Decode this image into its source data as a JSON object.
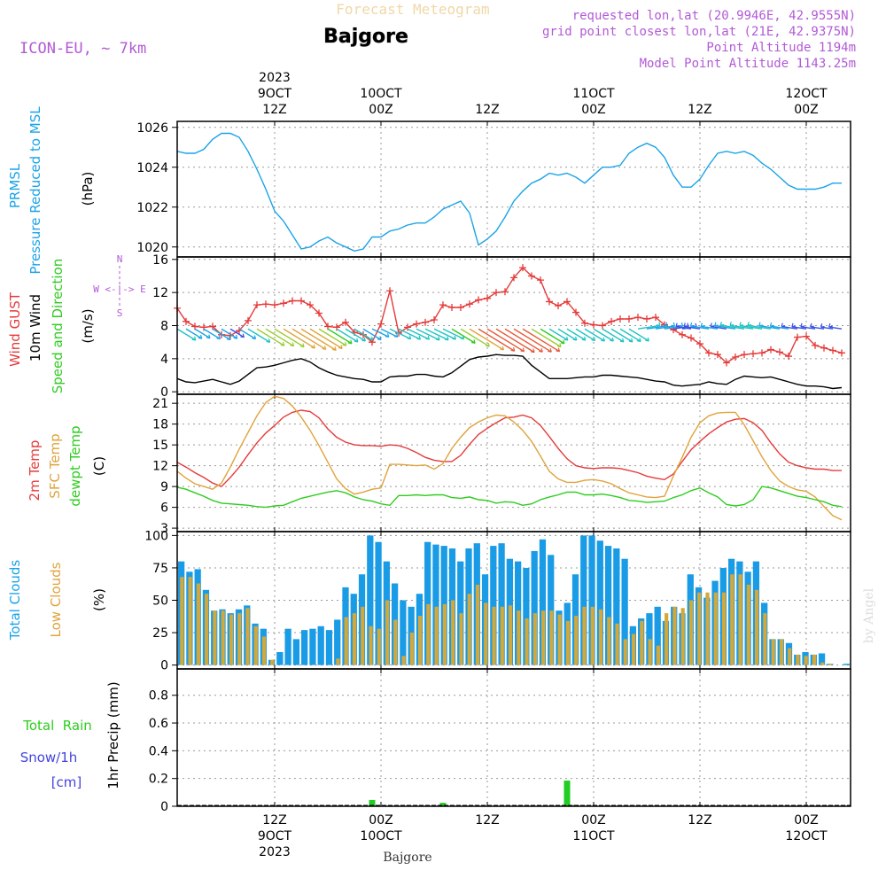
{
  "header": {
    "product": "Forecast Meteogram",
    "location": "Bajgore",
    "model": "ICON-EU, ~ 7km",
    "requested": "requested lon,lat (20.9946E, 42.9555N)",
    "gridpoint": "grid point closest lon,lat (21E, 42.9375N)",
    "point_altitude": "Point Altitude 1194m",
    "model_altitude": "Model Point Altitude 1143.25m",
    "watermark": "by Angel",
    "footer": "Bajgore"
  },
  "time_axis": {
    "top_labels": [
      {
        "lines": [
          "2023",
          "9OCT",
          "12Z"
        ],
        "t": 12
      },
      {
        "lines": [
          "10OCT",
          "00Z"
        ],
        "t": 24
      },
      {
        "lines": [
          "12Z"
        ],
        "t": 36
      },
      {
        "lines": [
          "11OCT",
          "00Z"
        ],
        "t": 48
      },
      {
        "lines": [
          "12Z"
        ],
        "t": 60
      },
      {
        "lines": [
          "12OCT",
          "00Z"
        ],
        "t": 72
      }
    ],
    "bottom_labels": [
      {
        "lines": [
          "12Z",
          "9OCT",
          "2023"
        ],
        "t": 12
      },
      {
        "lines": [
          "00Z",
          "10OCT"
        ],
        "t": 24
      },
      {
        "lines": [
          "12Z"
        ],
        "t": 36
      },
      {
        "lines": [
          "00Z",
          "11OCT"
        ],
        "t": 48
      },
      {
        "lines": [
          "12Z"
        ],
        "t": 60
      },
      {
        "lines": [
          "00Z",
          "12OCT"
        ],
        "t": 72
      }
    ]
  },
  "panels": {
    "pressure": {
      "label1": "PRMSL",
      "label2": "Pressure Reduced to MSL",
      "unit": "(hPa)"
    },
    "wind": {
      "gust": "Wind GUST",
      "wind10": "10m Wind",
      "speeddir": "Speed and Direction",
      "unit": "(m/s)",
      "compass_n": "N",
      "compass_s": "S",
      "compass_w": "W",
      "compass_e": "E",
      "compass_ws": "W <-|-> E"
    },
    "temp": {
      "t2m": "2m Temp",
      "sfc": "SFC Temp",
      "dewpt": "dewpt Temp",
      "unit": "(C)"
    },
    "clouds": {
      "total": "Total Clouds",
      "low": "Low Clouds",
      "unit": "(%)"
    },
    "precip": {
      "rain": "Total  Rain",
      "snow": "Snow/1h",
      "snow_unit": "[cm]",
      "ylabel": "1hr Precip (mm)"
    }
  },
  "chart_data": [
    {
      "type": "line",
      "title": "Pressure Reduced to MSL",
      "ylabel": "(hPa)",
      "x_range": [
        1,
        77
      ],
      "ylim": [
        1019.5,
        1026.3
      ],
      "yticks": [
        1020,
        1022,
        1024,
        1026
      ],
      "series": [
        {
          "name": "PRMSL",
          "color": "#1aa3e8",
          "x": [
            1,
            2,
            3,
            4,
            5,
            6,
            7,
            8,
            9,
            10,
            11,
            12,
            13,
            14,
            15,
            16,
            17,
            18,
            19,
            20,
            21,
            22,
            23,
            24,
            25,
            26,
            27,
            28,
            29,
            30,
            31,
            32,
            33,
            34,
            35,
            36,
            37,
            38,
            39,
            40,
            41,
            42,
            43,
            44,
            45,
            46,
            47,
            48,
            49,
            50,
            51,
            52,
            53,
            54,
            55,
            56,
            57,
            58,
            59,
            60,
            61,
            62,
            63,
            64,
            65,
            66,
            67,
            68,
            69,
            70,
            71,
            72,
            73,
            74,
            75,
            76
          ],
          "values": [
            1024.8,
            1024.7,
            1024.7,
            1024.9,
            1025.4,
            1025.7,
            1025.7,
            1025.5,
            1024.8,
            1023.9,
            1022.9,
            1021.8,
            1021.3,
            1020.6,
            1019.9,
            1020.0,
            1020.3,
            1020.5,
            1020.2,
            1020.0,
            1019.8,
            1019.9,
            1020.5,
            1020.5,
            1020.8,
            1020.9,
            1021.1,
            1021.2,
            1021.2,
            1021.5,
            1021.9,
            1022.1,
            1022.3,
            1021.7,
            1020.1,
            1020.4,
            1020.8,
            1021.5,
            1022.3,
            1022.8,
            1023.2,
            1023.4,
            1023.7,
            1023.6,
            1023.7,
            1023.5,
            1023.2,
            1023.6,
            1024.0,
            1024.0,
            1024.1,
            1024.7,
            1025.0,
            1025.2,
            1025.0,
            1024.5,
            1023.6,
            1023.0,
            1023.0,
            1023.4,
            1024.1,
            1024.7,
            1024.8,
            1024.7,
            1024.8,
            1024.6,
            1024.2,
            1023.9,
            1023.5,
            1023.1,
            1022.9,
            1022.9,
            1022.9,
            1023.0,
            1023.2,
            1023.2
          ]
        }
      ]
    },
    {
      "type": "line",
      "title": "Wind GUST / 10m Wind Speed and Direction",
      "ylabel": "(m/s)",
      "x_range": [
        1,
        77
      ],
      "ylim": [
        -0.3,
        16.3
      ],
      "yticks": [
        0,
        4,
        8,
        12,
        16
      ],
      "series": [
        {
          "name": "Wind GUST",
          "color": "#e53a3a",
          "values": [
            10.1,
            8.5,
            7.9,
            7.8,
            7.9,
            6.9,
            6.8,
            7.4,
            8.6,
            10.5,
            10.6,
            10.5,
            10.7,
            11.0,
            11.0,
            10.5,
            9.5,
            7.9,
            7.8,
            8.4,
            7.2,
            6.9,
            6.0,
            8.2,
            12.2,
            7.1,
            7.8,
            8.2,
            8.4,
            8.7,
            10.5,
            10.2,
            10.2,
            10.6,
            11.1,
            11.3,
            12.0,
            12.1,
            13.8,
            15.0,
            14.0,
            13.5,
            10.9,
            10.4,
            10.9,
            9.6,
            8.3,
            8.1,
            8.0,
            8.5,
            8.8,
            8.8,
            9.0,
            8.8,
            9.0,
            8.1,
            7.5,
            6.9,
            6.5,
            5.8,
            4.7,
            4.5,
            3.5,
            4.2,
            4.5,
            4.6,
            4.7,
            5.1,
            4.8,
            4.3,
            6.6,
            6.7,
            5.6,
            5.3,
            5.0,
            4.7
          ]
        },
        {
          "name": "10m Wind",
          "color": "#000000",
          "values": [
            1.6,
            1.2,
            1.1,
            1.3,
            1.5,
            1.2,
            0.9,
            1.3,
            2.1,
            2.9,
            3.0,
            3.2,
            3.5,
            3.8,
            4.0,
            3.6,
            2.9,
            2.4,
            2.0,
            1.8,
            1.6,
            1.5,
            1.2,
            1.2,
            1.8,
            1.9,
            1.9,
            2.1,
            2.1,
            1.9,
            1.8,
            2.3,
            3.1,
            3.9,
            4.2,
            4.3,
            4.5,
            4.4,
            4.4,
            4.3,
            3.2,
            2.4,
            1.6,
            1.6,
            1.6,
            1.7,
            1.8,
            1.8,
            2.0,
            2.0,
            1.9,
            1.8,
            1.7,
            1.5,
            1.3,
            1.2,
            0.8,
            0.7,
            0.8,
            0.9,
            1.2,
            1.0,
            0.9,
            1.5,
            1.9,
            1.8,
            1.7,
            1.8,
            1.5,
            1.2,
            0.9,
            0.7,
            0.7,
            0.6,
            0.4,
            0.5
          ]
        }
      ],
      "wind_barb_speeds": [
        1.6,
        1.2,
        1.1,
        1.3,
        1.5,
        1.2,
        0.9,
        1.3,
        2.1,
        2.9,
        3.0,
        3.2,
        3.5,
        3.8,
        4.0,
        3.6,
        2.9,
        2.4,
        2.0,
        1.8,
        1.6,
        1.5,
        1.2,
        1.2,
        1.8,
        1.9,
        1.9,
        2.1,
        2.1,
        1.9,
        1.8,
        2.3,
        3.1,
        3.9,
        4.2,
        4.3,
        4.5,
        4.4,
        4.4,
        4.3,
        3.2,
        2.4,
        1.6,
        1.6,
        1.6,
        1.7,
        1.8,
        1.8,
        2.0,
        2.0,
        1.9,
        1.8,
        1.7,
        1.5,
        1.3,
        1.2,
        0.8,
        0.7,
        0.8,
        0.9,
        1.2,
        1.0,
        0.9,
        1.5,
        1.9,
        1.8,
        1.7,
        1.8,
        1.5,
        1.2,
        0.9,
        0.7,
        0.7,
        0.6,
        0.4,
        0.5
      ]
    },
    {
      "type": "line",
      "title": "2m Temp / SFC Temp / dewpt Temp",
      "ylabel": "(C)",
      "x_range": [
        1,
        77
      ],
      "ylim": [
        2.5,
        22.3
      ],
      "yticks": [
        3,
        6,
        9,
        12,
        15,
        18,
        21
      ],
      "series": [
        {
          "name": "2m Temp",
          "color": "#e53a3a",
          "values": [
            12.5,
            11.8,
            11.0,
            10.3,
            9.5,
            9.0,
            10.3,
            11.8,
            13.6,
            15.3,
            16.7,
            17.8,
            19.0,
            19.7,
            20.0,
            19.8,
            18.9,
            17.3,
            16.1,
            15.4,
            15.0,
            14.9,
            14.9,
            14.8,
            15.0,
            14.9,
            14.5,
            13.9,
            13.2,
            12.8,
            12.6,
            12.6,
            13.5,
            15.1,
            16.5,
            17.4,
            18.2,
            18.9,
            19.0,
            19.3,
            18.9,
            17.8,
            16.2,
            14.5,
            13.0,
            12.0,
            11.7,
            11.6,
            11.7,
            11.7,
            11.6,
            11.3,
            11.0,
            10.5,
            10.2,
            10.0,
            10.8,
            12.6,
            14.3,
            15.5,
            16.6,
            17.5,
            18.3,
            18.7,
            18.8,
            18.2,
            17.1,
            15.3,
            13.7,
            12.5,
            12.0,
            11.7,
            11.5,
            11.5,
            11.3,
            11.3
          ]
        },
        {
          "name": "SFC Temp",
          "color": "#e0a33c",
          "values": [
            11.2,
            10.2,
            9.4,
            9.0,
            8.6,
            9.5,
            11.8,
            14.4,
            16.8,
            19.2,
            21.1,
            22.0,
            21.7,
            20.6,
            19.0,
            17.1,
            14.9,
            12.5,
            10.1,
            8.7,
            7.9,
            8.2,
            8.6,
            8.8,
            12.2,
            12.2,
            12.1,
            12.0,
            12.1,
            11.5,
            12.3,
            14.5,
            16.1,
            17.5,
            18.3,
            18.9,
            19.3,
            19.2,
            18.3,
            17.1,
            15.5,
            13.4,
            11.2,
            10.1,
            9.6,
            9.6,
            9.9,
            10.0,
            9.8,
            9.4,
            8.7,
            8.1,
            7.8,
            7.5,
            7.4,
            7.6,
            10.5,
            13.2,
            16.1,
            18.2,
            19.2,
            19.6,
            19.7,
            19.7,
            17.9,
            15.6,
            13.3,
            11.3,
            9.8,
            9.0,
            8.5,
            8.3,
            7.5,
            6.1,
            4.8,
            4.2
          ]
        },
        {
          "name": "dewpt Temp",
          "color": "#2ecc1f",
          "values": [
            8.9,
            8.6,
            8.1,
            7.6,
            7.0,
            6.6,
            6.5,
            6.4,
            6.3,
            6.1,
            6.0,
            6.2,
            6.3,
            6.8,
            7.3,
            7.6,
            7.9,
            8.2,
            8.4,
            8.1,
            7.5,
            7.1,
            6.9,
            6.5,
            6.3,
            7.7,
            7.7,
            7.8,
            7.7,
            7.8,
            7.8,
            7.4,
            7.3,
            7.5,
            7.1,
            7.0,
            6.6,
            6.8,
            6.7,
            6.3,
            6.5,
            7.1,
            7.5,
            7.8,
            8.2,
            8.2,
            7.8,
            7.8,
            7.9,
            7.7,
            7.4,
            7.0,
            6.9,
            6.7,
            6.8,
            6.9,
            7.4,
            7.8,
            8.4,
            8.8,
            8.1,
            7.5,
            6.4,
            6.2,
            6.4,
            7.1,
            9.0,
            8.8,
            8.4,
            8.0,
            7.6,
            7.4,
            7.1,
            6.8,
            6.3,
            6.1
          ]
        }
      ]
    },
    {
      "type": "bar",
      "title": "Total Clouds / Low Clouds",
      "ylabel": "(%)",
      "x_range": [
        1,
        77
      ],
      "ylim": [
        -3,
        103
      ],
      "yticks": [
        0,
        25,
        50,
        75,
        100
      ],
      "series": [
        {
          "name": "Total Clouds",
          "color": "#1a9be6",
          "values": [
            80,
            72,
            74,
            58,
            42,
            43,
            40,
            43,
            46,
            32,
            28,
            4,
            10,
            28,
            20,
            27,
            28,
            30,
            27,
            35,
            60,
            55,
            70,
            100,
            95,
            80,
            63,
            50,
            45,
            55,
            95,
            93,
            92,
            90,
            80,
            90,
            94,
            70,
            92,
            94,
            82,
            80,
            75,
            88,
            97,
            85,
            42,
            48,
            70,
            100,
            100,
            96,
            92,
            90,
            82,
            30,
            36,
            40,
            45,
            34,
            45,
            40,
            70,
            60,
            52,
            65,
            75,
            82,
            80,
            72,
            80,
            48,
            20,
            20,
            17,
            8,
            10,
            8,
            9,
            1,
            0,
            1
          ]
        },
        {
          "name": "Low Clouds",
          "color": "#d4a838",
          "values": [
            68,
            68,
            63,
            55,
            42,
            42,
            39,
            40,
            44,
            30,
            22,
            4,
            0,
            0,
            0,
            0,
            0,
            0,
            0,
            5,
            37,
            40,
            45,
            30,
            28,
            50,
            35,
            7,
            25,
            38,
            47,
            45,
            47,
            50,
            40,
            55,
            62,
            48,
            45,
            45,
            46,
            42,
            36,
            40,
            42,
            42,
            39,
            34,
            38,
            45,
            45,
            43,
            37,
            32,
            20,
            24,
            34,
            20,
            15,
            40,
            45,
            44,
            50,
            56,
            56,
            56,
            56,
            70,
            70,
            62,
            58,
            40,
            20,
            20,
            13,
            8,
            7,
            8,
            2,
            1,
            0,
            0
          ]
        }
      ]
    },
    {
      "type": "bar",
      "title": "1hr Precip",
      "ylabel": "1hr Precip (mm)",
      "x_range": [
        1,
        77
      ],
      "ylim": [
        0,
        0.99
      ],
      "yticks": [
        0,
        0.2,
        0.4,
        0.6,
        0.8
      ],
      "series": [
        {
          "name": "Total Rain",
          "color": "#22cc22",
          "points": [
            {
              "x": 23,
              "value": 0.045
            },
            {
              "x": 31,
              "value": 0.025
            },
            {
              "x": 45,
              "value": 0.185
            },
            {
              "x": 46,
              "value": 0.01
            }
          ]
        }
      ]
    }
  ]
}
